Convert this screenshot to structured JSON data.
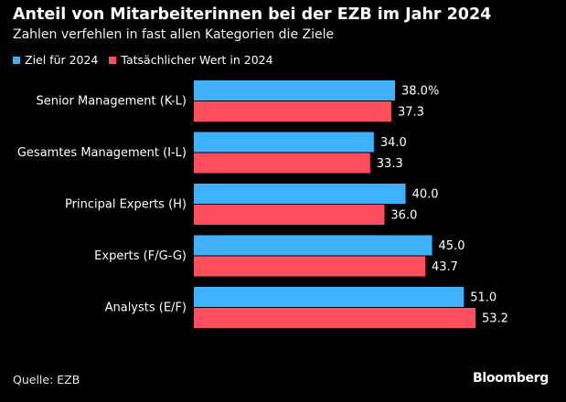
{
  "title": "Anteil von Mitarbeiterinnen bei der EZB im Jahr 2024",
  "subtitle": "Zahlen verfehlen in fast allen Kategorien die Ziele",
  "source": "Quelle: EZB",
  "brand": "Bloomberg",
  "colors": {
    "background": "#000000",
    "target": "#3fb1ff",
    "actual": "#ff4e5e"
  },
  "chart_data": {
    "type": "bar",
    "orientation": "horizontal",
    "categories": [
      "Senior Management (K-L)",
      "Gesamtes Management (I-L)",
      "Principal Experts (H)",
      "Experts (F/G-G)",
      "Analysts (E/F)"
    ],
    "series": [
      {
        "name": "Ziel für 2024",
        "color": "#3fb1ff",
        "values": [
          38.0,
          34.0,
          40.0,
          45.0,
          51.0
        ],
        "labels": [
          "38.0%",
          "34.0",
          "40.0",
          "45.0",
          "51.0"
        ]
      },
      {
        "name": "Tatsächlicher Wert in 2024",
        "color": "#ff4e5e",
        "values": [
          37.3,
          33.3,
          36.0,
          43.7,
          53.2
        ],
        "labels": [
          "37.3",
          "33.3",
          "36.0",
          "43.7",
          "53.2"
        ]
      }
    ],
    "title": "Anteil von Mitarbeiterinnen bei der EZB im Jahr 2024",
    "xlabel": "",
    "ylabel": "",
    "xlim": [
      0,
      53.2
    ],
    "grid": false,
    "legend": "top-left"
  }
}
